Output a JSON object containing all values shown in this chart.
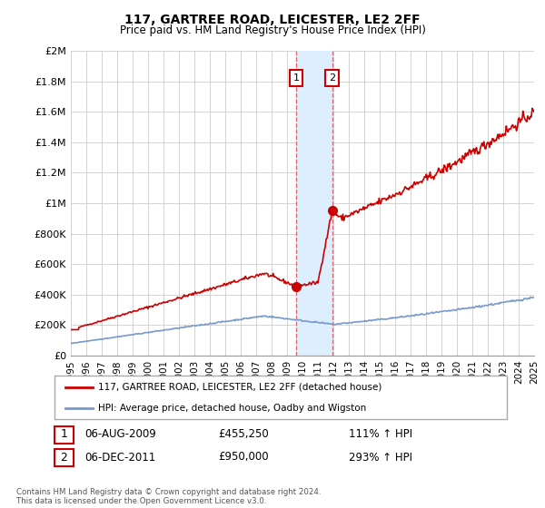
{
  "title": "117, GARTREE ROAD, LEICESTER, LE2 2FF",
  "subtitle": "Price paid vs. HM Land Registry's House Price Index (HPI)",
  "legend_label_red": "117, GARTREE ROAD, LEICESTER, LE2 2FF (detached house)",
  "legend_label_blue": "HPI: Average price, detached house, Oadby and Wigston",
  "footnote": "Contains HM Land Registry data © Crown copyright and database right 2024.\nThis data is licensed under the Open Government Licence v3.0.",
  "transaction1_label": "1",
  "transaction1_date": "06-AUG-2009",
  "transaction1_price": "£455,250",
  "transaction1_hpi": "111% ↑ HPI",
  "transaction1_year": 2009.59,
  "transaction1_value": 455250,
  "transaction2_label": "2",
  "transaction2_date": "06-DEC-2011",
  "transaction2_price": "£950,000",
  "transaction2_hpi": "293% ↑ HPI",
  "transaction2_year": 2011.92,
  "transaction2_value": 950000,
  "shade_color": "#ddeeff",
  "red_color": "#cc0000",
  "blue_color": "#7799cc",
  "marker_color": "#cc0000",
  "background_color": "#ffffff",
  "grid_color": "#cccccc",
  "ylim": [
    0,
    2000000
  ],
  "xlim_start": 1995.0,
  "xlim_end": 2025.0,
  "yticks": [
    0,
    200000,
    400000,
    600000,
    800000,
    1000000,
    1200000,
    1400000,
    1600000,
    1800000,
    2000000
  ],
  "ytick_labels": [
    "£0",
    "£200K",
    "£400K",
    "£600K",
    "£800K",
    "£1M",
    "£1.2M",
    "£1.4M",
    "£1.6M",
    "£1.8M",
    "£2M"
  ],
  "xtick_years": [
    1995,
    1996,
    1997,
    1998,
    1999,
    2000,
    2001,
    2002,
    2003,
    2004,
    2005,
    2006,
    2007,
    2008,
    2009,
    2010,
    2011,
    2012,
    2013,
    2014,
    2015,
    2016,
    2017,
    2018,
    2019,
    2020,
    2021,
    2022,
    2023,
    2024,
    2025
  ]
}
